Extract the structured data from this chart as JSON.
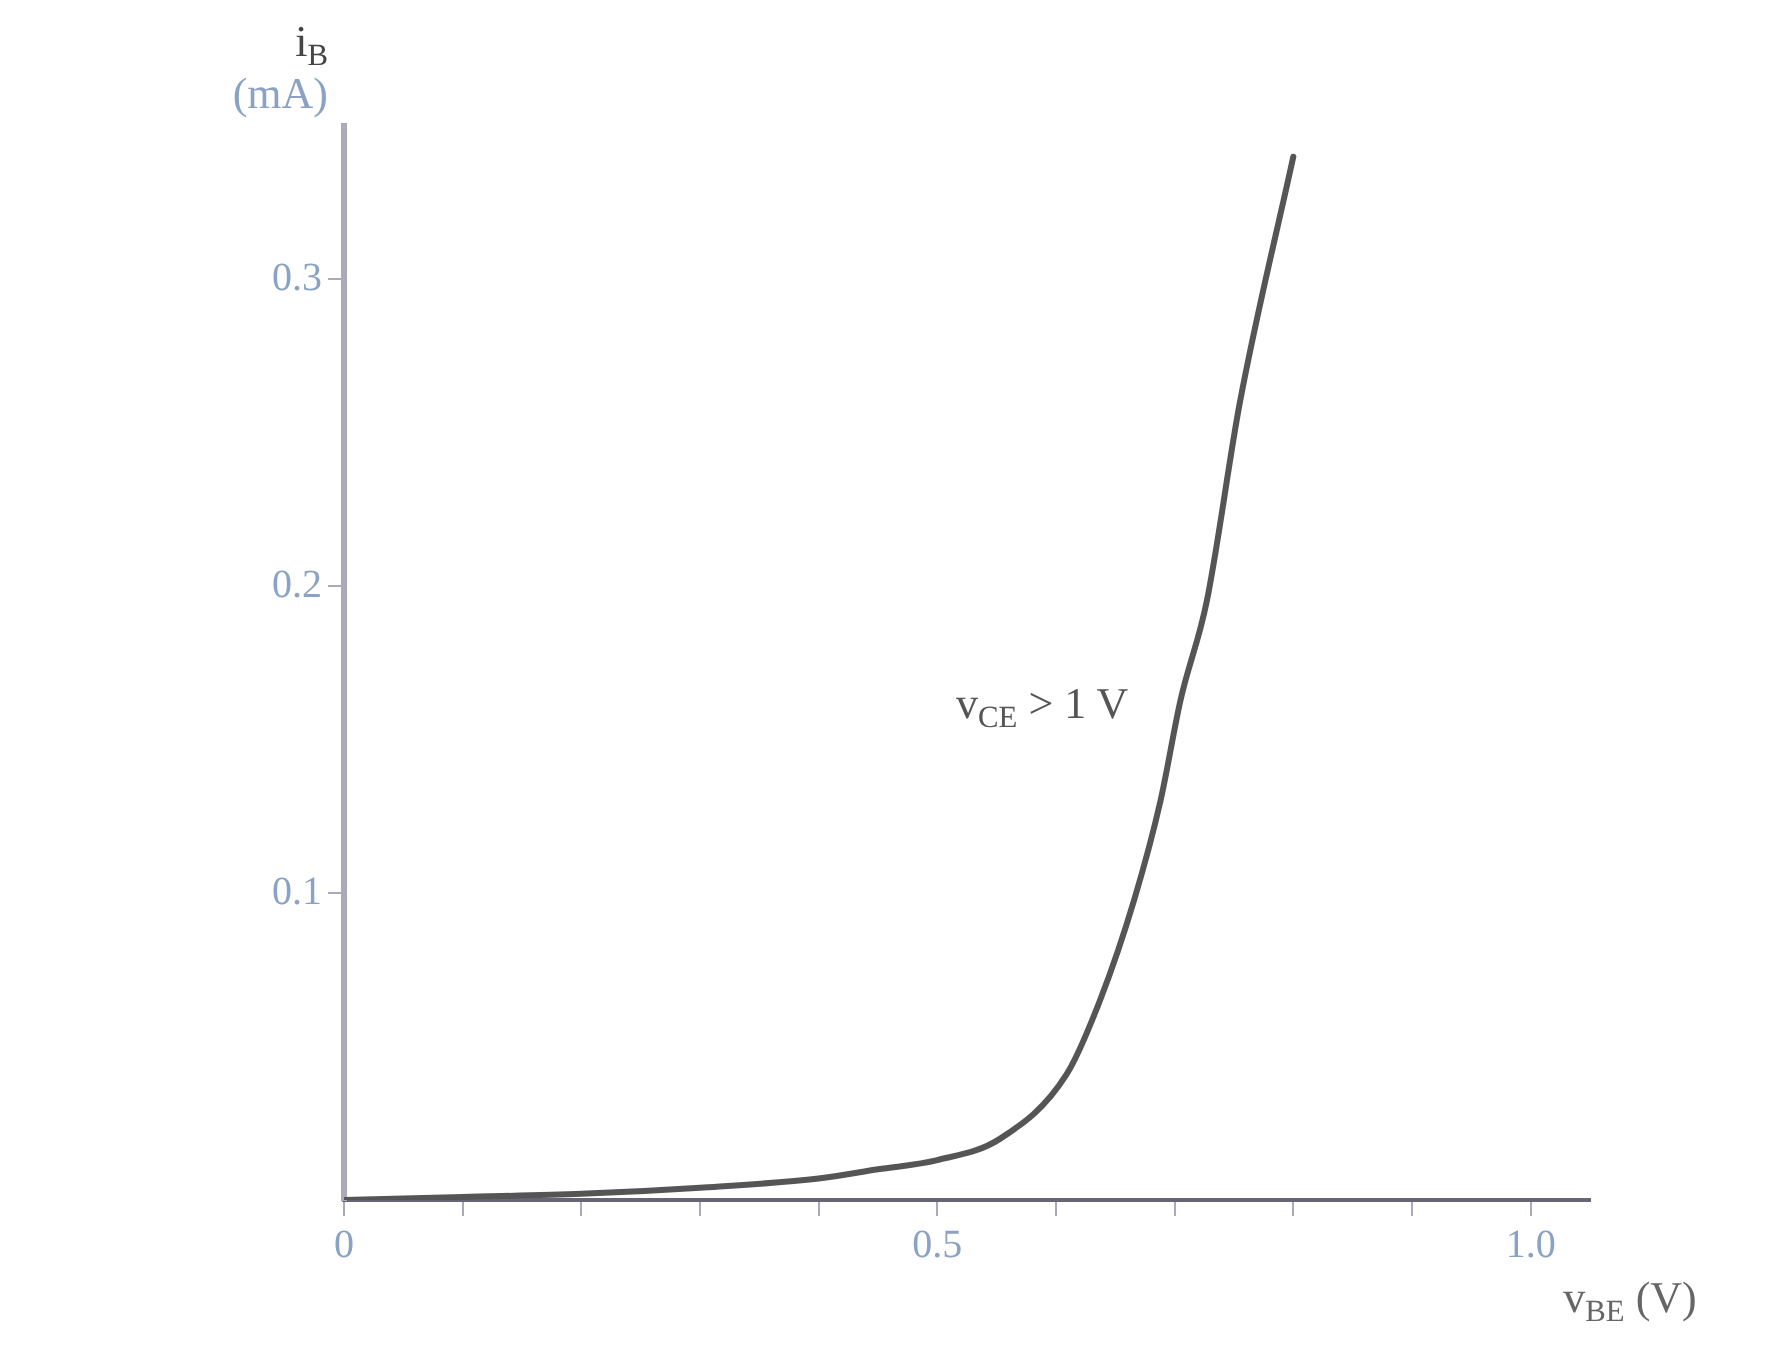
{
  "chart_data": {
    "type": "line",
    "xlabel": "v$_{BE}$ (V)",
    "ylabel": "i$_{B}$ (mA)",
    "x": [
      0,
      0.1,
      0.2,
      0.3,
      0.4,
      0.45,
      0.5,
      0.553,
      0.609,
      0.637,
      0.666,
      0.688,
      0.705,
      0.727,
      0.755,
      0.8
    ],
    "series": [
      {
        "color": "#555555",
        "values": [
          0,
          0.001,
          0.002,
          0.004,
          0.007,
          0.01,
          0.013,
          0.02,
          0.041,
          0.065,
          0.098,
          0.13,
          0.163,
          0.195,
          0.26,
          0.34
        ]
      }
    ],
    "xlim": [
      0,
      1.05
    ],
    "ylim": [
      0,
      0.35
    ],
    "xticks": [
      0,
      {
        "value": 0.1,
        "label": null
      },
      {
        "value": 0.2,
        "label": null
      },
      {
        "value": 0.3,
        "label": null
      },
      {
        "value": 0.4,
        "label": null
      },
      0.5,
      {
        "value": 0.6,
        "label": null
      },
      {
        "value": 0.7,
        "label": null
      },
      {
        "value": 0.8,
        "label": null
      },
      {
        "value": 0.9,
        "label": null
      },
      {
        "value": 1,
        "label": "1.0"
      }
    ],
    "yticks": [
      0.1,
      0.2,
      0.3
    ],
    "annotations": [
      "v$_{CE}$ > 1 V"
    ],
    "grid": false,
    "legend": false,
    "marker": "none",
    "line_style": "solid"
  }
}
